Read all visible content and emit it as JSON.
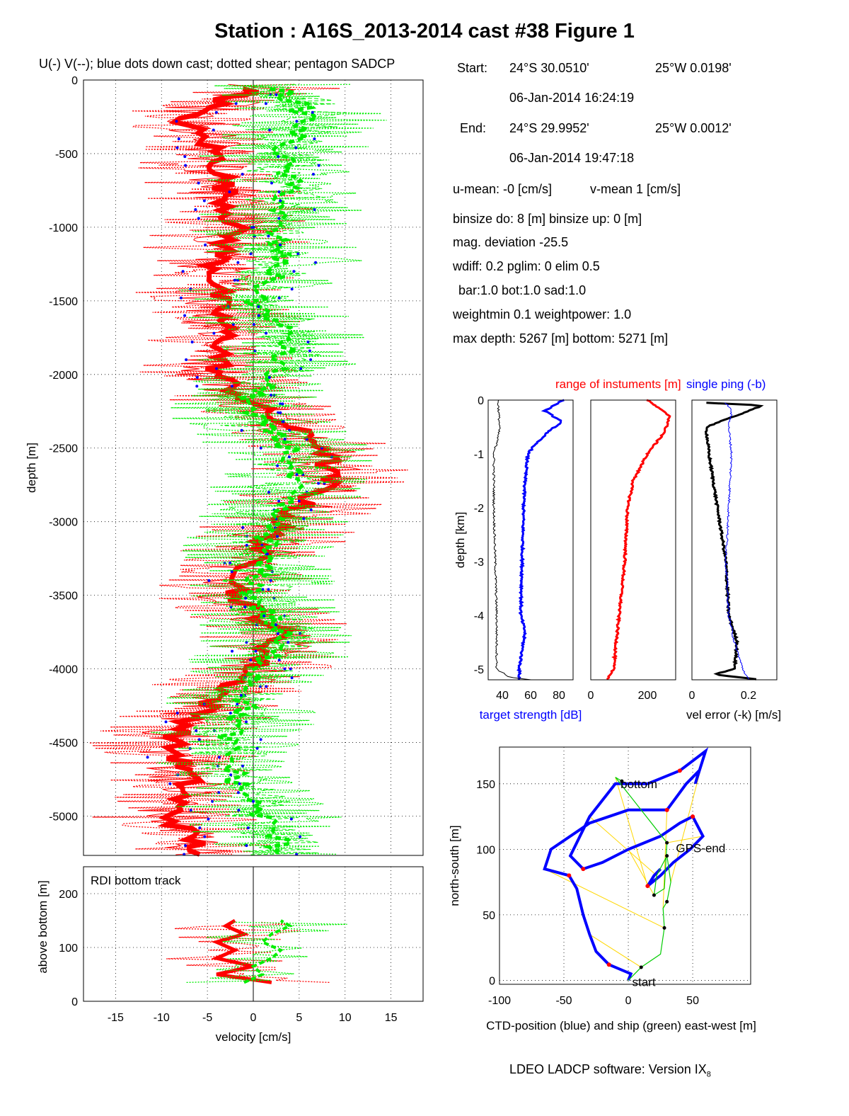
{
  "figure": {
    "title": "Station : A16S_2013-2014 cast #38  Figure 1",
    "subtitle": "U(-) V(--); blue dots down cast; dotted shear; pentagon SADCP",
    "footer_software": "LDEO LADCP software: Version IX",
    "footer_version_sub": "8"
  },
  "info": {
    "start_label": "Start:",
    "start_lat": "24°S 30.0510'",
    "start_lon": "25°W  0.0198'",
    "start_time": "06-Jan-2014 16:24:19",
    "end_label": "End:",
    "end_lat": "24°S 29.9952'",
    "end_lon": "25°W  0.0012'",
    "end_time": "06-Jan-2014 19:47:18",
    "u_mean": "u-mean:  -0 [cm/s]",
    "v_mean": "v-mean   1 [cm/s]",
    "binsize": "binsize do: 8 [m]  binsize up:  0 [m]",
    "mag_dev": "mag. deviation -25.5",
    "wdiff": "wdiff: 0.2  pglim: 0  elim 0.5",
    "bar": "bar:1.0 bot:1.0 sad:1.0",
    "weight": "weightmin 0.1  weightpower: 1.0",
    "depths": "max depth: 5267 [m]   bottom: 5271 [m]"
  },
  "chart_data": [
    {
      "type": "line",
      "name": "velocity profile",
      "ylabel": "depth [m]",
      "xlim": [
        -18.5,
        18.5
      ],
      "ylim": [
        -5267,
        0
      ],
      "xticks": [
        -15,
        -10,
        -5,
        0,
        5,
        10,
        15
      ],
      "yticks": [
        0,
        -500,
        -1000,
        -1500,
        -2000,
        -2500,
        -3000,
        -3500,
        -4000,
        -4500,
        -5000
      ],
      "grid": true,
      "series": [
        {
          "key": "U",
          "color": "#ff0000",
          "depth": [
            0,
            -250,
            -500,
            -750,
            -1000,
            -1250,
            -1500,
            -1750,
            -2000,
            -2250,
            -2500,
            -2750,
            -3000,
            -3250,
            -3500,
            -3750,
            -4000,
            -4250,
            -4500,
            -4750,
            -5000,
            -5200
          ],
          "values": [
            3,
            -8,
            -4,
            -3,
            -2,
            -4,
            -4,
            -3,
            -4,
            1,
            8,
            8,
            3,
            0,
            -2,
            3,
            0,
            -5,
            -9,
            -7,
            -9,
            -6
          ]
        },
        {
          "key": "V",
          "color": "#00ee00",
          "depth": [
            0,
            -250,
            -500,
            -750,
            -1000,
            -1250,
            -1500,
            -1750,
            -2000,
            -2250,
            -2500,
            -2750,
            -3000,
            -3250,
            -3500,
            -3750,
            -4000,
            -4250,
            -4500,
            -4750,
            -5000,
            -5200
          ],
          "values": [
            2,
            6,
            3,
            4,
            2,
            3,
            0,
            4,
            2,
            -1,
            4,
            4,
            2,
            1,
            0,
            3,
            1,
            -1,
            -3,
            -2,
            1,
            3
          ]
        }
      ],
      "downcast_points_color": "#0000ff"
    },
    {
      "type": "line",
      "name": "RDI bottom track",
      "label": "RDI bottom track",
      "xlabel": "velocity [cm/s]",
      "ylabel": "above bottom [m]",
      "xlim": [
        -18.5,
        18.5
      ],
      "ylim": [
        0,
        250
      ],
      "xticks": [
        -15,
        -10,
        -5,
        0,
        5,
        10,
        15
      ],
      "yticks": [
        0,
        100,
        200
      ],
      "grid": true,
      "series": [
        {
          "key": "U",
          "color": "#ff0000",
          "height": [
            35,
            50,
            65,
            80,
            95,
            110,
            125,
            140,
            150
          ],
          "values": [
            2,
            -4,
            0,
            -4,
            -2,
            -4,
            -1,
            -3,
            -2
          ]
        },
        {
          "key": "V",
          "color": "#00ee00",
          "height": [
            35,
            50,
            65,
            80,
            95,
            110,
            125,
            140,
            150
          ],
          "values": [
            -1,
            1,
            0,
            2,
            3,
            1,
            2,
            4,
            3
          ]
        }
      ]
    },
    {
      "type": "line",
      "name": "target strength",
      "title_red": "range of instuments [m]",
      "title_blue": "single ping (-b)",
      "ylabel": "depth [km]",
      "xlabel": "target strength [dB]",
      "xlim": [
        30,
        90
      ],
      "ylim": [
        -5.2,
        0
      ],
      "xticks": [
        40,
        60,
        80
      ],
      "yticks": [
        0,
        -1,
        -2,
        -3,
        -4,
        -5
      ],
      "series": [
        {
          "color": "#0000ff",
          "depth": [
            0,
            -0.2,
            -0.4,
            -0.6,
            -0.8,
            -1.0,
            -1.5,
            -2.0,
            -3.0,
            -4.0,
            -4.3,
            -5.0,
            -5.2
          ],
          "values": [
            83,
            70,
            82,
            72,
            64,
            58,
            56,
            55,
            54,
            53,
            56,
            52,
            52
          ]
        },
        {
          "color": "#000000",
          "depth": [
            0,
            -0.5,
            -0.8,
            -1.0,
            -2.0,
            -3.0,
            -4.0,
            -5.0,
            -5.15,
            -5.2
          ],
          "values": [
            37,
            38,
            36,
            34,
            34,
            35,
            36,
            36,
            45,
            60
          ]
        }
      ]
    },
    {
      "type": "line",
      "name": "range",
      "xlim": [
        0,
        300
      ],
      "ylim": [
        -5.2,
        0
      ],
      "xticks": [
        0,
        200
      ],
      "series": [
        {
          "color": "#ff0000",
          "depth": [
            0,
            -0.3,
            -0.6,
            -1.0,
            -1.5,
            -2.0,
            -3.0,
            -4.0,
            -4.5,
            -5.0,
            -5.2
          ],
          "values": [
            200,
            280,
            260,
            200,
            150,
            130,
            120,
            100,
            90,
            80,
            60
          ]
        }
      ]
    },
    {
      "type": "line",
      "name": "velocity error",
      "xlabel": "vel error (-k) [m/s]",
      "xlim": [
        0,
        0.3
      ],
      "ylim": [
        -5.2,
        0
      ],
      "xticks": [
        0,
        0.2
      ],
      "series": [
        {
          "color": "#000000",
          "depth": [
            -0.05,
            -0.1,
            -0.5,
            -1.0,
            -2.0,
            -3.0,
            -4.0,
            -4.5,
            -5.0,
            -5.1,
            -5.2
          ],
          "values": [
            0.05,
            0.25,
            0.05,
            0.06,
            0.09,
            0.12,
            0.13,
            0.16,
            0.15,
            0.08,
            0.24
          ]
        },
        {
          "color": "#0000ff",
          "depth": [
            -0.05,
            -0.2,
            -0.5,
            -1.0,
            -2.0,
            -3.0,
            -4.0,
            -4.5,
            -5.0,
            -5.2
          ],
          "values": [
            0.12,
            0.14,
            0.13,
            0.14,
            0.13,
            0.12,
            0.13,
            0.15,
            0.18,
            0.2
          ]
        }
      ]
    },
    {
      "type": "line",
      "name": "position track",
      "xlabel": "CTD-position (blue) and ship (green) east-west [m]",
      "ylabel": "north-south [m]",
      "xlim": [
        -100,
        95
      ],
      "ylim": [
        -3,
        178
      ],
      "xticks": [
        -100,
        -50,
        0,
        50
      ],
      "yticks": [
        0,
        50,
        100,
        150
      ],
      "grid": true,
      "annotations": [
        {
          "text": "start",
          "x": 3,
          "y": -1
        },
        {
          "text": "bottom",
          "x": -6,
          "y": 150
        },
        {
          "text": "GPS-end",
          "x": 37,
          "y": 101
        }
      ],
      "series": [
        {
          "key": "ctd",
          "color": "#0000ff",
          "x": [
            0,
            2,
            -15,
            -25,
            -30,
            -35,
            -40,
            -46,
            -65,
            -60,
            -30,
            0,
            30,
            45,
            55,
            52,
            60,
            40,
            15,
            -10,
            -30,
            -45,
            -35,
            -20,
            0,
            25,
            40,
            50,
            58,
            48,
            35,
            25,
            15,
            20,
            25
          ],
          "y": [
            0,
            5,
            12,
            22,
            35,
            50,
            70,
            80,
            85,
            100,
            120,
            130,
            130,
            150,
            160,
            150,
            175,
            160,
            150,
            150,
            125,
            95,
            85,
            90,
            100,
            110,
            120,
            125,
            110,
            100,
            90,
            80,
            72,
            80,
            85
          ]
        },
        {
          "key": "ship",
          "color": "#00cc00",
          "x": [
            0,
            10,
            25,
            28,
            27,
            30,
            33,
            30,
            22,
            20,
            28,
            30,
            -10,
            -5
          ],
          "y": [
            0,
            10,
            20,
            40,
            55,
            60,
            75,
            95,
            80,
            65,
            70,
            105,
            155,
            152
          ]
        }
      ]
    }
  ]
}
